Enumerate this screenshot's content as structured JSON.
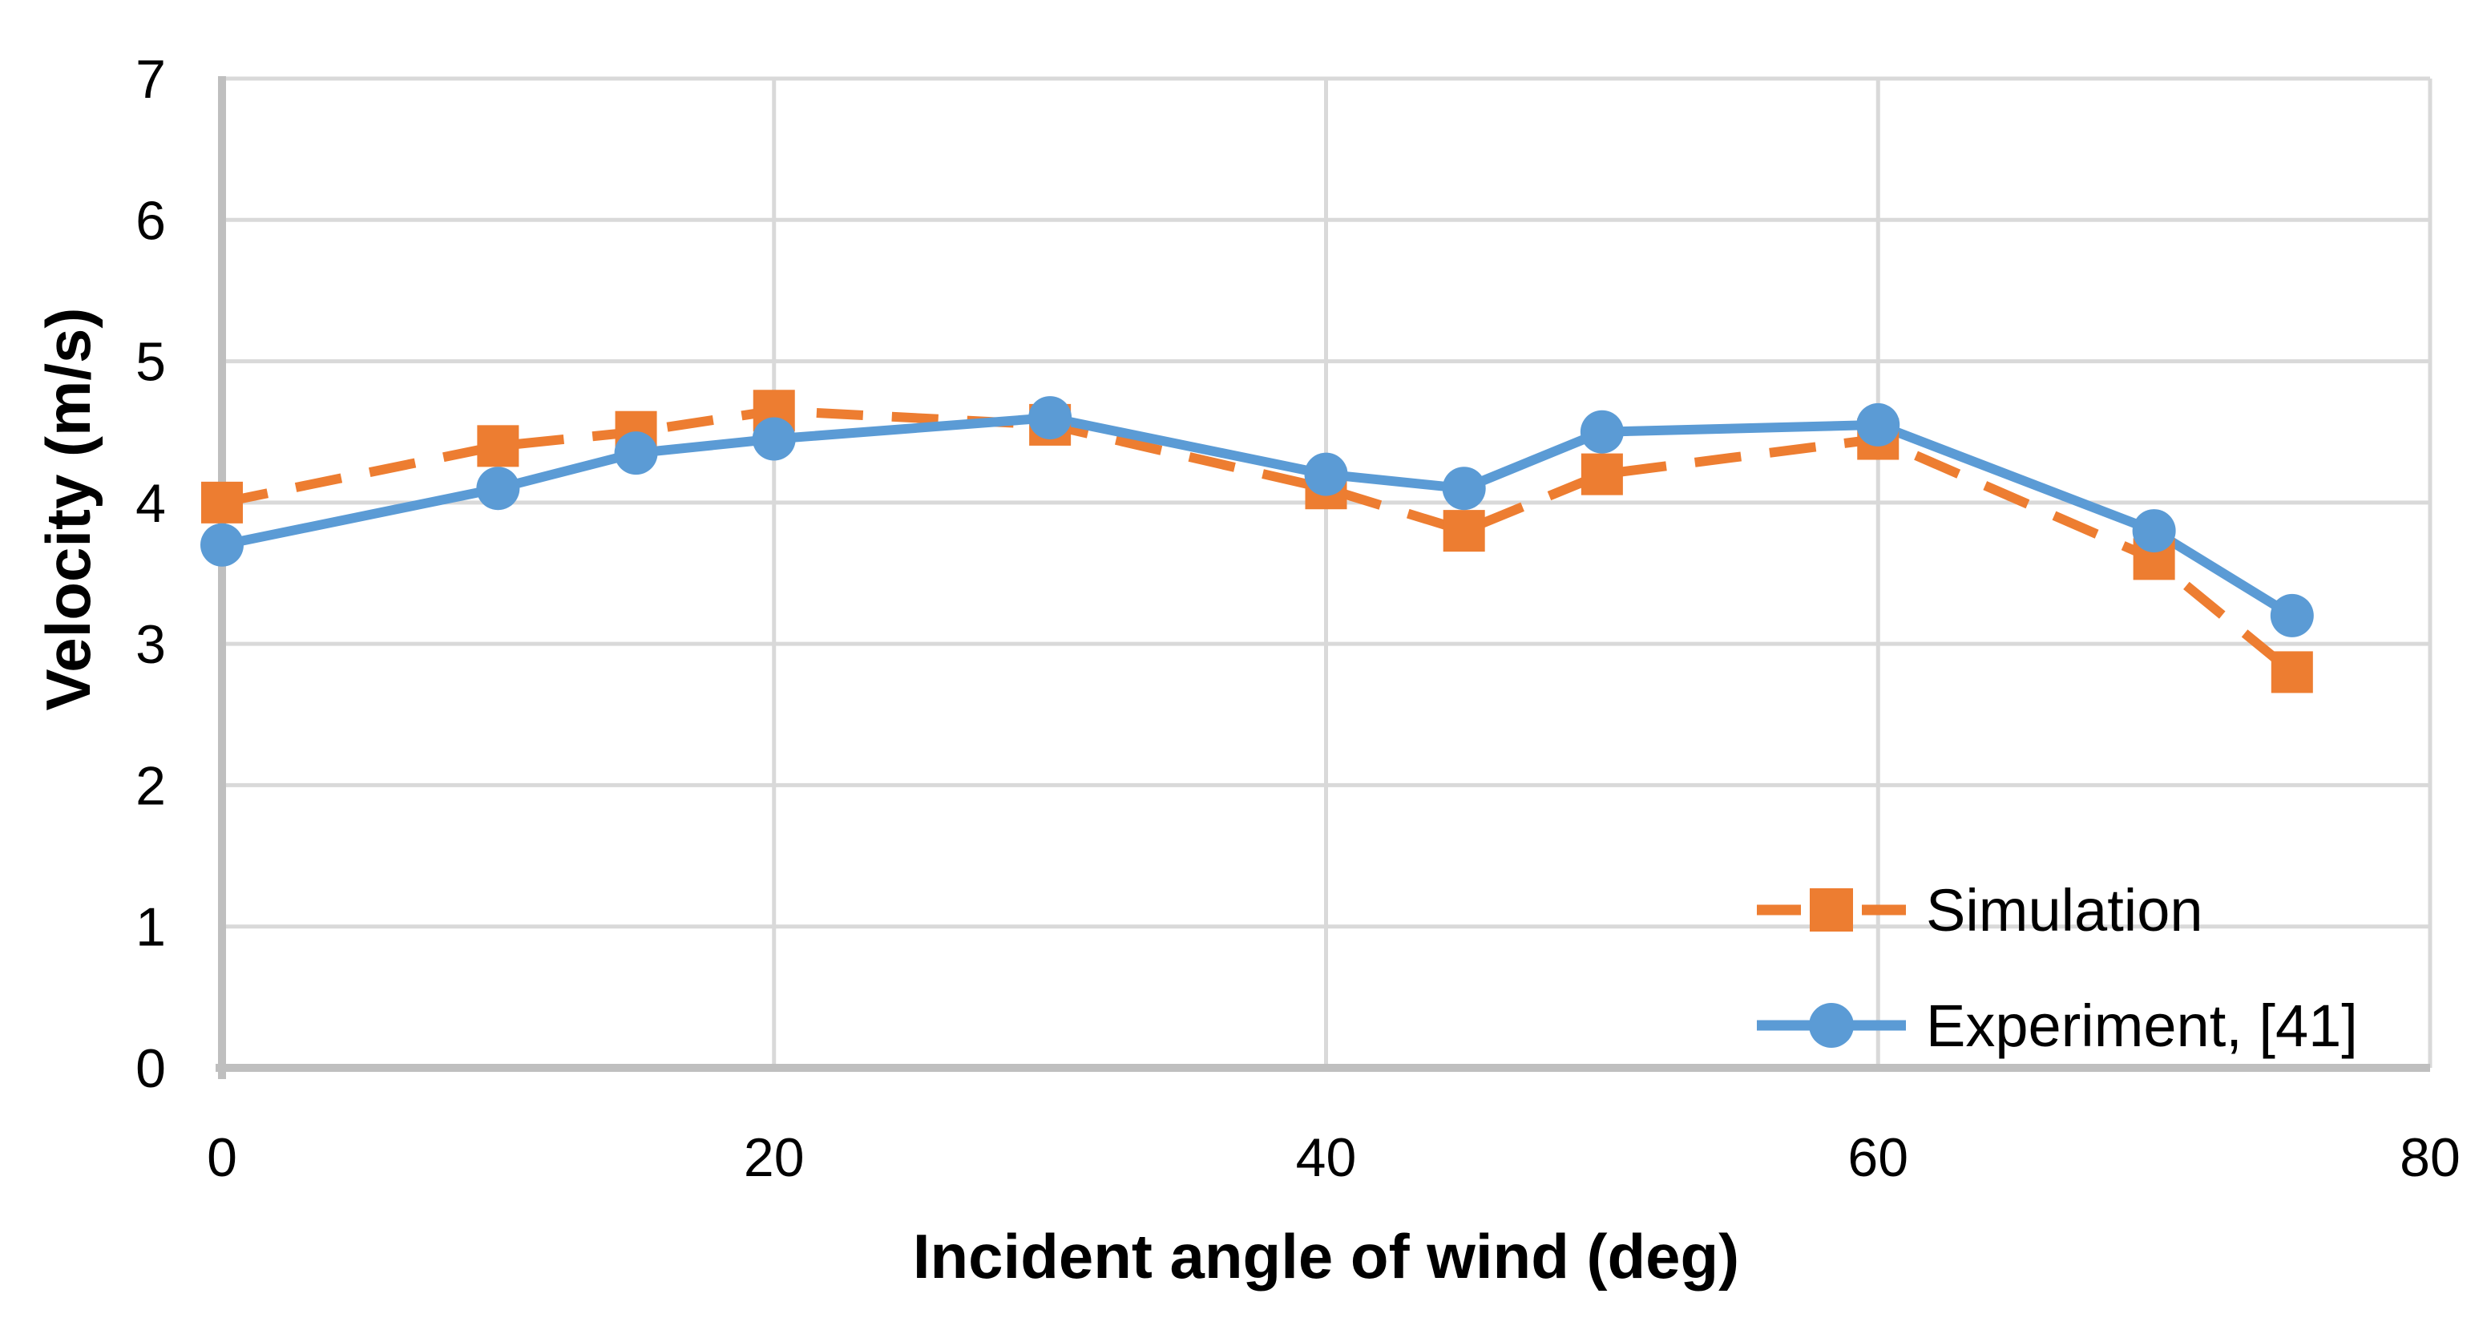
{
  "chart_data": {
    "type": "line",
    "title": "",
    "xlabel": "Incident angle of wind (deg)",
    "ylabel": "Velocity (m/s)",
    "xlim": [
      0,
      80
    ],
    "ylim": [
      0,
      7
    ],
    "x_ticks": [
      0,
      20,
      40,
      60,
      80
    ],
    "y_ticks": [
      0,
      1,
      2,
      3,
      4,
      5,
      6,
      7
    ],
    "grid": "major gridlines horizontal (every 1) and vertical (every 20)",
    "legend_position": "inside bottom-right",
    "x": [
      0,
      10,
      15,
      20,
      30,
      40,
      45,
      50,
      60,
      70,
      75
    ],
    "series": [
      {
        "name": "Simulation",
        "color": "#ED7D31",
        "line_style": "dashed",
        "marker": "square",
        "values": [
          4.0,
          4.4,
          4.5,
          4.65,
          4.55,
          4.1,
          3.8,
          4.2,
          4.45,
          3.6,
          2.8
        ]
      },
      {
        "name": "Experiment, [41]",
        "color": "#5B9BD5",
        "line_style": "solid",
        "marker": "circle",
        "values": [
          3.7,
          4.1,
          4.35,
          4.45,
          4.6,
          4.2,
          4.1,
          4.5,
          4.55,
          3.8,
          3.2
        ]
      }
    ]
  },
  "colors": {
    "background": "#FFFFFF",
    "gridline": "#D9D9D9",
    "axis_line": "#BFBFBF",
    "text": "#000000"
  }
}
